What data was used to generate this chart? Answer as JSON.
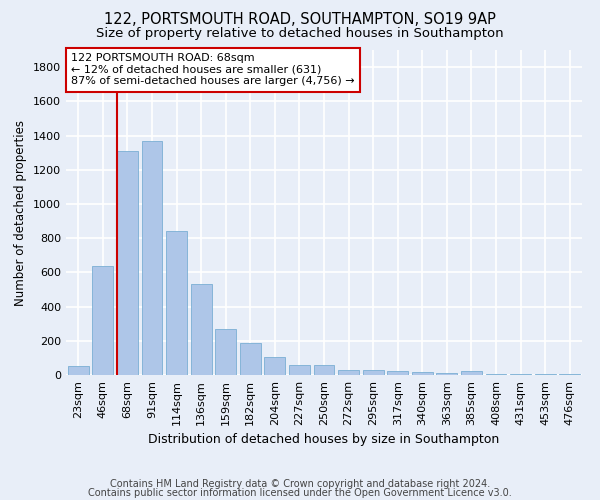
{
  "title1": "122, PORTSMOUTH ROAD, SOUTHAMPTON, SO19 9AP",
  "title2": "Size of property relative to detached houses in Southampton",
  "xlabel": "Distribution of detached houses by size in Southampton",
  "ylabel": "Number of detached properties",
  "categories": [
    "23sqm",
    "46sqm",
    "68sqm",
    "91sqm",
    "114sqm",
    "136sqm",
    "159sqm",
    "182sqm",
    "204sqm",
    "227sqm",
    "250sqm",
    "272sqm",
    "295sqm",
    "317sqm",
    "340sqm",
    "363sqm",
    "385sqm",
    "408sqm",
    "431sqm",
    "453sqm",
    "476sqm"
  ],
  "values": [
    50,
    640,
    1310,
    1370,
    840,
    530,
    270,
    185,
    105,
    60,
    60,
    30,
    30,
    25,
    15,
    12,
    25,
    8,
    5,
    5,
    5
  ],
  "bar_color": "#aec6e8",
  "bar_edge_color": "#7aafd4",
  "highlight_index": 2,
  "highlight_color": "#cc0000",
  "annotation_text": "122 PORTSMOUTH ROAD: 68sqm\n← 12% of detached houses are smaller (631)\n87% of semi-detached houses are larger (4,756) →",
  "annotation_box_color": "#ffffff",
  "annotation_box_edge_color": "#cc0000",
  "ylim": [
    0,
    1900
  ],
  "yticks": [
    0,
    200,
    400,
    600,
    800,
    1000,
    1200,
    1400,
    1600,
    1800
  ],
  "footer1": "Contains HM Land Registry data © Crown copyright and database right 2024.",
  "footer2": "Contains public sector information licensed under the Open Government Licence v3.0.",
  "bg_color": "#e8eef8",
  "grid_color": "#ffffff",
  "title1_fontsize": 10.5,
  "title2_fontsize": 9.5,
  "xlabel_fontsize": 9,
  "ylabel_fontsize": 8.5,
  "tick_fontsize": 8,
  "annotation_fontsize": 8,
  "footer_fontsize": 7
}
